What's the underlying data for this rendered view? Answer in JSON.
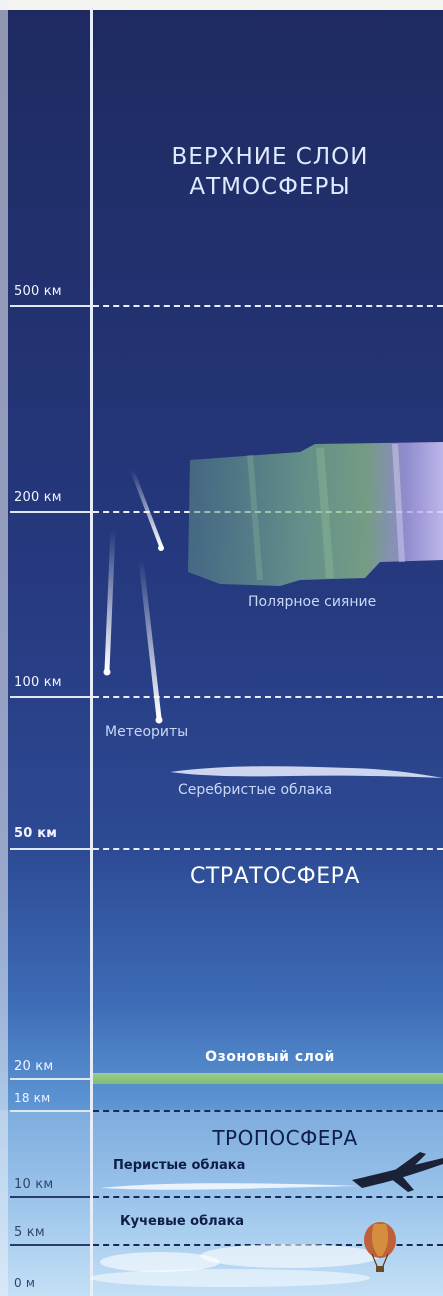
{
  "title": "ВЕРХНИЕ СЛОИ АТМОСФЕРЫ",
  "title_lines": [
    "ВЕРХНИЕ СЛОИ",
    "АТМОСФЕРЫ"
  ],
  "altitude_labels": [
    "500 км",
    "200 км",
    "100 км",
    "50 км",
    "20 км",
    "18 км",
    "10 км",
    "5 км",
    "0 м"
  ],
  "layers": {
    "stratosphere": "СТРАТОСФЕРА",
    "troposphere": "ТРОПОСФЕРА"
  },
  "phenomena": {
    "aurora": "Полярное сияние",
    "meteors": "Метеориты",
    "noctilucent": "Серебристые облака",
    "ozone": "Озоновый слой",
    "cirrus": "Перистые облака",
    "cumulus": "Кучевые облака"
  },
  "colors": {
    "sky_top": "#1e2a60",
    "sky_bottom": "#bcdcf4",
    "ozone": "#8fca7c",
    "aurora_green": "#7fb58f",
    "aurora_violet": "#b8a4e8"
  }
}
